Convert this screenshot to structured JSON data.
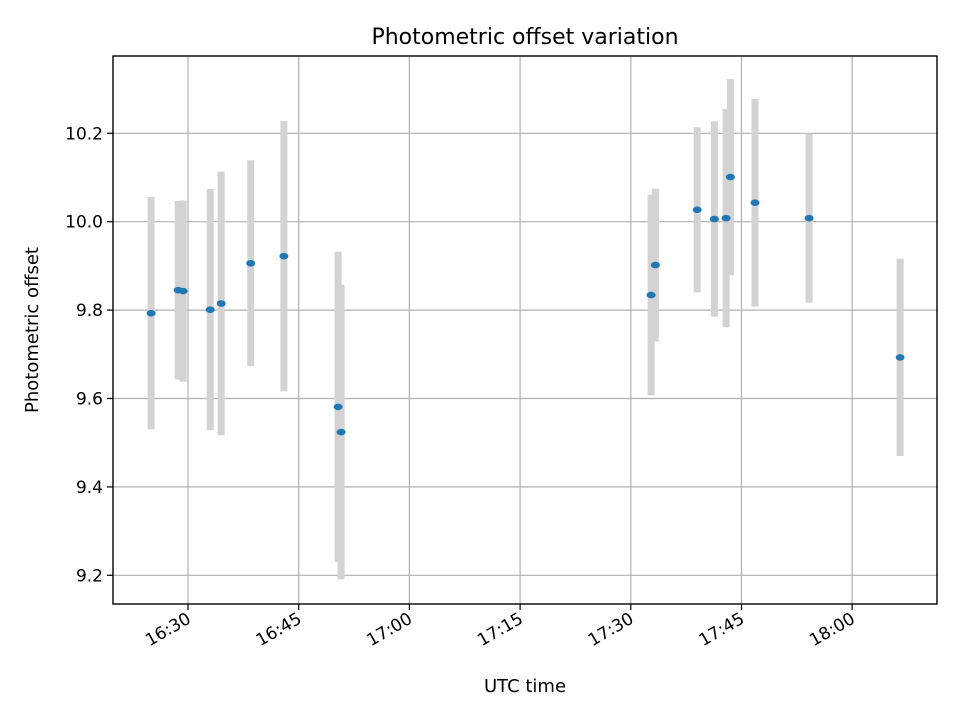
{
  "chart_data": {
    "type": "scatter",
    "title": "Photometric offset variation",
    "xlabel": "UTC time",
    "ylabel": "Photometric offset",
    "x_is_time": true,
    "xlim": [
      "16:19:50",
      "18:11:30"
    ],
    "ylim": [
      9.135,
      10.375
    ],
    "grid": true,
    "x_ticks": [
      "16:30",
      "16:45",
      "17:00",
      "17:15",
      "17:30",
      "17:45",
      "18:00"
    ],
    "y_ticks": [
      9.2,
      9.4,
      9.6,
      9.8,
      10.0,
      10.2
    ],
    "y_tick_labels": [
      "9.2",
      "9.4",
      "9.6",
      "9.8",
      "10.0",
      "10.2"
    ],
    "x_tick_rotation_deg": 30,
    "colors": {
      "points": "#1f77b4",
      "errorbars": "#d3d3d3"
    },
    "points": [
      {
        "x": "16:25:00",
        "y": 9.793,
        "yerr": 0.263
      },
      {
        "x": "16:28:40",
        "y": 9.845,
        "yerr": 0.202
      },
      {
        "x": "16:29:20",
        "y": 9.843,
        "yerr": 0.205
      },
      {
        "x": "16:33:00",
        "y": 9.801,
        "yerr": 0.273
      },
      {
        "x": "16:34:30",
        "y": 9.815,
        "yerr": 0.298
      },
      {
        "x": "16:38:30",
        "y": 9.906,
        "yerr": 0.233
      },
      {
        "x": "16:43:00",
        "y": 9.922,
        "yerr": 0.306
      },
      {
        "x": "16:50:20",
        "y": 9.581,
        "yerr": 0.351
      },
      {
        "x": "16:50:45",
        "y": 9.524,
        "yerr": 0.333
      },
      {
        "x": "17:32:45",
        "y": 9.834,
        "yerr": 0.227
      },
      {
        "x": "17:33:20",
        "y": 9.902,
        "yerr": 0.173
      },
      {
        "x": "17:39:00",
        "y": 10.027,
        "yerr": 0.187
      },
      {
        "x": "17:41:20",
        "y": 10.006,
        "yerr": 0.221
      },
      {
        "x": "17:42:55",
        "y": 10.008,
        "yerr": 0.247
      },
      {
        "x": "17:43:30",
        "y": 10.101,
        "yerr": 0.222
      },
      {
        "x": "17:46:50",
        "y": 10.043,
        "yerr": 0.235
      },
      {
        "x": "17:54:10",
        "y": 10.008,
        "yerr": 0.191
      },
      {
        "x": "18:06:30",
        "y": 9.693,
        "yerr": 0.223
      }
    ]
  }
}
